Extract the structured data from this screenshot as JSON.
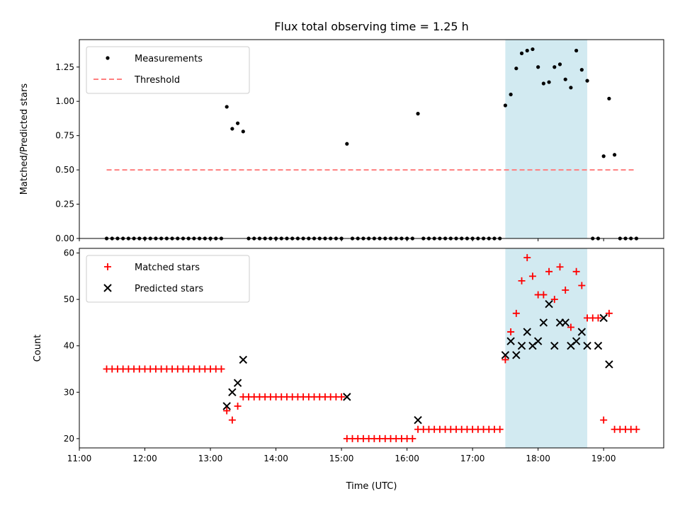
{
  "chart_data": [
    {
      "type": "scatter",
      "title": "Flux total observing time = 1.25 h",
      "xlabel": "",
      "ylabel": "Matched/Predicted stars",
      "xlim": [
        "11:00",
        "19:55"
      ],
      "ylim": [
        0,
        1.45
      ],
      "yticks": [
        "0.00",
        "0.25",
        "0.50",
        "0.75",
        "1.00",
        "1.25"
      ],
      "legend_position": "upper-left",
      "grid": false,
      "highlight_span": {
        "start": "17:30",
        "end": "18:45",
        "color": "#add8e6"
      },
      "series": [
        {
          "name": "Measurements",
          "marker": "dot",
          "color": "#000000",
          "x": [
            "11:25",
            "11:30",
            "11:35",
            "11:40",
            "11:45",
            "11:50",
            "11:55",
            "12:00",
            "12:05",
            "12:10",
            "12:15",
            "12:20",
            "12:25",
            "12:30",
            "12:35",
            "12:40",
            "12:45",
            "12:50",
            "12:55",
            "13:00",
            "13:05",
            "13:10",
            "13:15",
            "13:20",
            "13:25",
            "13:30",
            "13:35",
            "13:40",
            "13:45",
            "13:50",
            "13:55",
            "14:00",
            "14:05",
            "14:10",
            "14:15",
            "14:20",
            "14:25",
            "14:30",
            "14:35",
            "14:40",
            "14:45",
            "14:50",
            "14:55",
            "15:00",
            "15:05",
            "15:10",
            "15:15",
            "15:20",
            "15:25",
            "15:30",
            "15:35",
            "15:40",
            "15:45",
            "15:50",
            "15:55",
            "16:00",
            "16:05",
            "16:10",
            "16:15",
            "16:20",
            "16:25",
            "16:30",
            "16:35",
            "16:40",
            "16:45",
            "16:50",
            "16:55",
            "17:00",
            "17:05",
            "17:10",
            "17:15",
            "17:20",
            "17:25",
            "17:30",
            "17:35",
            "17:40",
            "17:45",
            "17:50",
            "17:55",
            "18:00",
            "18:05",
            "18:10",
            "18:15",
            "18:20",
            "18:25",
            "18:30",
            "18:35",
            "18:40",
            "18:45",
            "18:50",
            "18:55",
            "19:00",
            "19:05",
            "19:10",
            "19:15",
            "19:20",
            "19:25",
            "19:30"
          ],
          "y": [
            0,
            0,
            0,
            0,
            0,
            0,
            0,
            0,
            0,
            0,
            0,
            0,
            0,
            0,
            0,
            0,
            0,
            0,
            0,
            0,
            0,
            0,
            0.96,
            0.8,
            0.84,
            0.78,
            0,
            0,
            0,
            0,
            0,
            0,
            0,
            0,
            0,
            0,
            0,
            0,
            0,
            0,
            0,
            0,
            0,
            0,
            0.69,
            0,
            0,
            0,
            0,
            0,
            0,
            0,
            0,
            0,
            0,
            0,
            0,
            0.91,
            0,
            0,
            0,
            0,
            0,
            0,
            0,
            0,
            0,
            0,
            0,
            0,
            0,
            0,
            0,
            0.97,
            1.05,
            1.24,
            1.35,
            1.37,
            1.38,
            1.25,
            1.13,
            1.14,
            1.25,
            1.27,
            1.16,
            1.1,
            1.37,
            1.23,
            1.15,
            0,
            0,
            0.6,
            1.02,
            0.61,
            0,
            0,
            0,
            0
          ]
        },
        {
          "name": "Threshold",
          "line_style": "dashed",
          "color": "#ff7f7f",
          "x": [
            "11:25",
            "19:30"
          ],
          "y": [
            0.5,
            0.5
          ]
        }
      ]
    },
    {
      "type": "scatter",
      "title": "",
      "xlabel": "Time (UTC)",
      "ylabel": "Count",
      "xlim": [
        "11:00",
        "19:55"
      ],
      "ylim": [
        18,
        61
      ],
      "yticks": [
        "20",
        "30",
        "40",
        "50",
        "60"
      ],
      "xticks": [
        "11:00",
        "12:00",
        "13:00",
        "14:00",
        "15:00",
        "16:00",
        "17:00",
        "18:00",
        "19:00"
      ],
      "legend_position": "upper-left",
      "grid": false,
      "highlight_span": {
        "start": "17:30",
        "end": "18:45",
        "color": "#add8e6"
      },
      "series": [
        {
          "name": "Matched stars",
          "marker": "plus",
          "color": "#ff0000",
          "x": [
            "11:25",
            "11:30",
            "11:35",
            "11:40",
            "11:45",
            "11:50",
            "11:55",
            "12:00",
            "12:05",
            "12:10",
            "12:15",
            "12:20",
            "12:25",
            "12:30",
            "12:35",
            "12:40",
            "12:45",
            "12:50",
            "12:55",
            "13:00",
            "13:05",
            "13:10",
            "13:15",
            "13:20",
            "13:25",
            "13:30",
            "13:35",
            "13:40",
            "13:45",
            "13:50",
            "13:55",
            "14:00",
            "14:05",
            "14:10",
            "14:15",
            "14:20",
            "14:25",
            "14:30",
            "14:35",
            "14:40",
            "14:45",
            "14:50",
            "14:55",
            "15:00",
            "15:05",
            "15:10",
            "15:15",
            "15:20",
            "15:25",
            "15:30",
            "15:35",
            "15:40",
            "15:45",
            "15:50",
            "15:55",
            "16:00",
            "16:05",
            "16:10",
            "16:15",
            "16:20",
            "16:25",
            "16:30",
            "16:35",
            "16:40",
            "16:45",
            "16:50",
            "16:55",
            "17:00",
            "17:05",
            "17:10",
            "17:15",
            "17:20",
            "17:25",
            "17:30",
            "17:35",
            "17:40",
            "17:45",
            "17:50",
            "17:55",
            "18:00",
            "18:05",
            "18:10",
            "18:15",
            "18:20",
            "18:25",
            "18:30",
            "18:35",
            "18:40",
            "18:45",
            "18:50",
            "18:55",
            "19:00",
            "19:05",
            "19:10",
            "19:15",
            "19:20",
            "19:25",
            "19:30"
          ],
          "y": [
            35,
            35,
            35,
            35,
            35,
            35,
            35,
            35,
            35,
            35,
            35,
            35,
            35,
            35,
            35,
            35,
            35,
            35,
            35,
            35,
            35,
            35,
            26,
            24,
            27,
            29,
            29,
            29,
            29,
            29,
            29,
            29,
            29,
            29,
            29,
            29,
            29,
            29,
            29,
            29,
            29,
            29,
            29,
            29,
            20,
            20,
            20,
            20,
            20,
            20,
            20,
            20,
            20,
            20,
            20,
            20,
            20,
            22,
            22,
            22,
            22,
            22,
            22,
            22,
            22,
            22,
            22,
            22,
            22,
            22,
            22,
            22,
            22,
            37,
            43,
            47,
            54,
            59,
            55,
            51,
            51,
            56,
            50,
            57,
            52,
            44,
            56,
            53,
            46,
            46,
            46,
            24,
            47,
            22,
            22,
            22,
            22,
            22
          ]
        },
        {
          "name": "Predicted stars",
          "marker": "x",
          "color": "#000000",
          "x": [
            "13:15",
            "13:20",
            "13:25",
            "13:30",
            "15:05",
            "16:10",
            "17:30",
            "17:35",
            "17:40",
            "17:45",
            "17:50",
            "17:55",
            "18:00",
            "18:05",
            "18:10",
            "18:15",
            "18:20",
            "18:25",
            "18:30",
            "18:35",
            "18:40",
            "18:45",
            "18:55",
            "19:00",
            "19:05"
          ],
          "y": [
            27,
            30,
            32,
            37,
            29,
            24,
            38,
            41,
            38,
            40,
            43,
            40,
            41,
            45,
            49,
            40,
            45,
            45,
            40,
            41,
            43,
            40,
            40,
            46,
            36
          ]
        }
      ]
    }
  ]
}
